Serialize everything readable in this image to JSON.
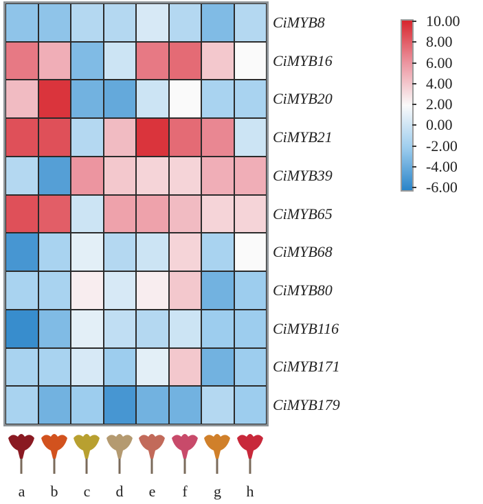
{
  "chart_data": {
    "type": "heatmap",
    "title": "",
    "rows": [
      "CiMYB8",
      "CiMYB16",
      "CiMYB20",
      "CiMYB21",
      "CiMYB39",
      "CiMYB65",
      "CiMYB68",
      "CiMYB80",
      "CiMYB116",
      "CiMYB171",
      "CiMYB179"
    ],
    "columns": [
      "a",
      "b",
      "c",
      "d",
      "e",
      "f",
      "g",
      "h"
    ],
    "values": [
      [
        -2.5,
        -2.5,
        -1,
        -1,
        0.5,
        -1,
        -3,
        -1
      ],
      [
        7,
        5,
        -3,
        0,
        7,
        7.5,
        4,
        2
      ],
      [
        4.5,
        9.5,
        -3.5,
        -4,
        0,
        2,
        -1.5,
        -1.5
      ],
      [
        8.5,
        8.5,
        -1,
        4.5,
        9.5,
        7.5,
        6.5,
        0
      ],
      [
        -1,
        -4.5,
        6,
        4,
        3.5,
        3.5,
        5,
        5
      ],
      [
        8.5,
        8,
        0,
        5.5,
        5.5,
        4.5,
        3.5,
        3.5
      ],
      [
        -5,
        -1.5,
        1,
        -1,
        0,
        3.5,
        -1.5,
        2
      ],
      [
        -1.5,
        -1.5,
        2.5,
        0.5,
        2.5,
        4,
        -3.5,
        -2
      ],
      [
        -5.5,
        -3,
        1,
        -0.5,
        -1,
        0,
        -2,
        -2
      ],
      [
        -1.5,
        -1.5,
        0.5,
        -2,
        1,
        4,
        -3.5,
        -2
      ],
      [
        -1.5,
        -3.5,
        -2,
        -5,
        -3.5,
        -3.5,
        -1,
        -2
      ]
    ],
    "colorbar": {
      "range": [
        -6,
        10
      ],
      "tick_labels": [
        "10.00",
        "8.00",
        "6.00",
        "4.00",
        "2.00",
        "0.00",
        "-2.00",
        "-4.00",
        "-6.00"
      ],
      "tick_values": [
        10,
        8,
        6,
        4,
        2,
        0,
        -2,
        -4,
        -6
      ],
      "colors": {
        "low": "#2a84c8",
        "lowmid": "#9dcdee",
        "mid": "#fafafa",
        "highmid": "#ec95a0",
        "high": "#d7262e"
      }
    },
    "legend_placement": "top-right",
    "flower_colors": [
      "#8a1a22",
      "#d2521e",
      "#b8a030",
      "#b49a70",
      "#c26a5a",
      "#c84a6a",
      "#d0802a",
      "#c8283a"
    ]
  }
}
